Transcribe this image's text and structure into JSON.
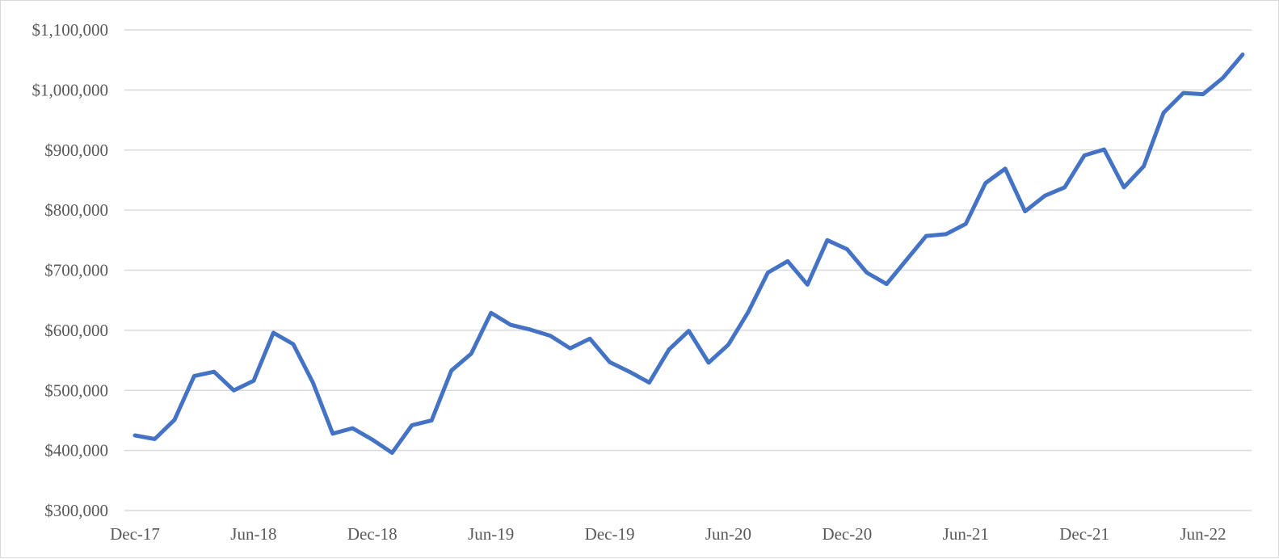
{
  "chart_data": {
    "type": "line",
    "title": "",
    "xlabel": "",
    "ylabel": "",
    "grid": true,
    "legend": "none",
    "ylim": [
      300000,
      1100000
    ],
    "yticks": [
      300000,
      400000,
      500000,
      600000,
      700000,
      800000,
      900000,
      1000000,
      1100000
    ],
    "ytick_labels": [
      "$300,000",
      "$400,000",
      "$500,000",
      "$600,000",
      "$700,000",
      "$800,000",
      "$900,000",
      "$1,000,000",
      "$1,100,000"
    ],
    "x": [
      "Dec-17",
      "Jan-18",
      "Feb-18",
      "Mar-18",
      "Apr-18",
      "May-18",
      "Jun-18",
      "Jul-18",
      "Aug-18",
      "Sep-18",
      "Oct-18",
      "Nov-18",
      "Dec-18",
      "Jan-19",
      "Feb-19",
      "Mar-19",
      "Apr-19",
      "May-19",
      "Jun-19",
      "Jul-19",
      "Aug-19",
      "Sep-19",
      "Oct-19",
      "Nov-19",
      "Dec-19",
      "Jan-20",
      "Feb-20",
      "Mar-20",
      "Apr-20",
      "May-20",
      "Jun-20",
      "Jul-20",
      "Aug-20",
      "Sep-20",
      "Oct-20",
      "Nov-20",
      "Dec-20",
      "Jan-21",
      "Feb-21",
      "Mar-21",
      "Apr-21",
      "May-21",
      "Jun-21",
      "Jul-21",
      "Aug-21",
      "Sep-21",
      "Oct-21",
      "Nov-21",
      "Dec-21",
      "Jan-22",
      "Feb-22",
      "Mar-22",
      "Apr-22",
      "May-22",
      "Jun-22",
      "Jul-22",
      "Aug-22"
    ],
    "xtick_labels": [
      "Dec-17",
      "Jun-18",
      "Dec-18",
      "Jun-19",
      "Dec-19",
      "Jun-20",
      "Dec-20",
      "Jun-21",
      "Dec-21",
      "Jun-22"
    ],
    "series": [
      {
        "color": "#4472c4",
        "values": [
          425000,
          419000,
          451000,
          524000,
          531000,
          500000,
          516000,
          596000,
          577000,
          513000,
          428000,
          437000,
          418000,
          396000,
          442000,
          450000,
          533000,
          561000,
          629000,
          609000,
          601000,
          591000,
          570000,
          586000,
          547000,
          531000,
          513000,
          568000,
          599000,
          546000,
          576000,
          630000,
          696000,
          715000,
          676000,
          750000,
          735000,
          696000,
          677000,
          717000,
          757000,
          760000,
          777000,
          845000,
          869000,
          798000,
          824000,
          838000,
          891000,
          901000,
          838000,
          873000,
          962000,
          995000,
          993000,
          1020000,
          1059000
        ]
      }
    ]
  }
}
